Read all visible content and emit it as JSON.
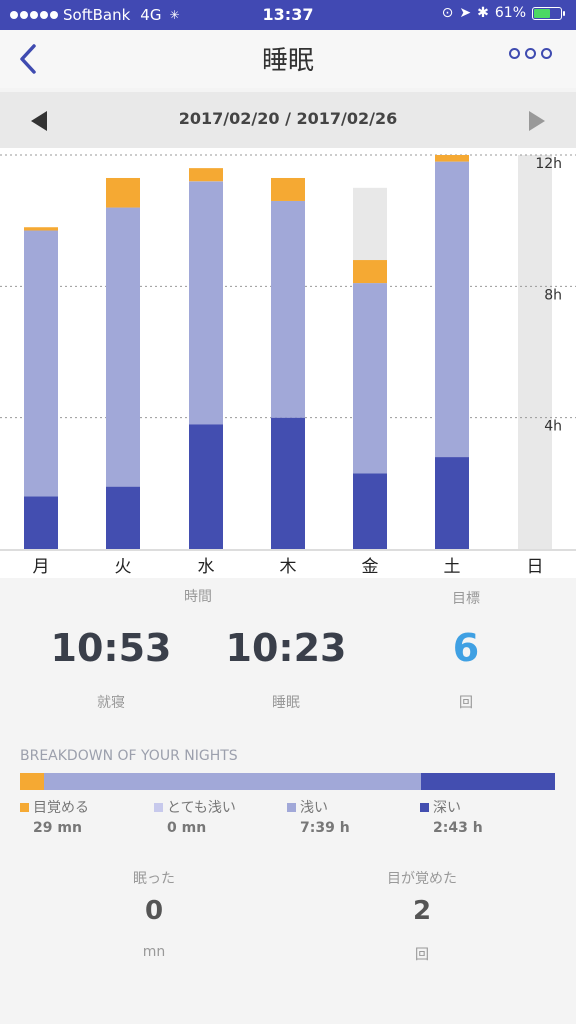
{
  "status": {
    "carrier": "SoftBank",
    "network": "4G",
    "time": "13:37",
    "battery": "61%",
    "battery_level": 0.61
  },
  "nav": {
    "title": "睡眠"
  },
  "week": {
    "range": "2017/02/20 / 2017/02/26"
  },
  "colors": {
    "awake": "#f5a933",
    "very_light": "#c7c9ec",
    "light": "#a1a8d8",
    "deep": "#434eb0",
    "goal": "#e8e8e8",
    "accent_blue": "#3fa0e3"
  },
  "chart_data": {
    "type": "bar",
    "categories": [
      "月",
      "火",
      "水",
      "木",
      "金",
      "土",
      "日"
    ],
    "y_tick_labels": [
      "12h",
      "8h",
      "4h"
    ],
    "y_ticks": [
      12,
      8,
      4
    ],
    "ylim": [
      0,
      12
    ],
    "series": [
      {
        "name": "深い",
        "values": [
          1.6,
          1.9,
          3.8,
          4.0,
          2.3,
          2.8,
          0
        ]
      },
      {
        "name": "浅い",
        "values": [
          8.1,
          8.5,
          7.4,
          6.6,
          5.8,
          9.0,
          0
        ]
      },
      {
        "name": "目覚める",
        "values": [
          0.1,
          0.9,
          0.4,
          0.7,
          0.7,
          0.2,
          0
        ]
      }
    ],
    "goal": [
      0,
      0,
      0,
      0,
      11.0,
      0,
      12.0
    ]
  },
  "summary": {
    "time_label": "時間",
    "goal_label": "目標",
    "bedtime": "10:53",
    "bedtime_label": "就寝",
    "sleep": "10:23",
    "sleep_label": "睡眠",
    "goal_value": "6",
    "goal_unit": "回"
  },
  "breakdown": {
    "title": "BREAKDOWN OF YOUR NIGHTS",
    "segments": [
      0.045,
      0.0,
      0.705,
      0.25
    ],
    "legend": [
      {
        "name": "目覚める",
        "value": "29 mn",
        "color": "#f5a933"
      },
      {
        "name": "とても浅い",
        "value": "0 mn",
        "color": "#c7c9ec"
      },
      {
        "name": "浅い",
        "value": "7:39 h",
        "color": "#a1a8d8"
      },
      {
        "name": "深い",
        "value": "2:43 h",
        "color": "#434eb0"
      }
    ]
  },
  "stats": {
    "fell_asleep_label": "眠った",
    "fell_asleep_value": "0",
    "fell_asleep_unit": "mn",
    "woke_label": "目が覚めた",
    "woke_value": "2",
    "woke_unit": "回"
  }
}
